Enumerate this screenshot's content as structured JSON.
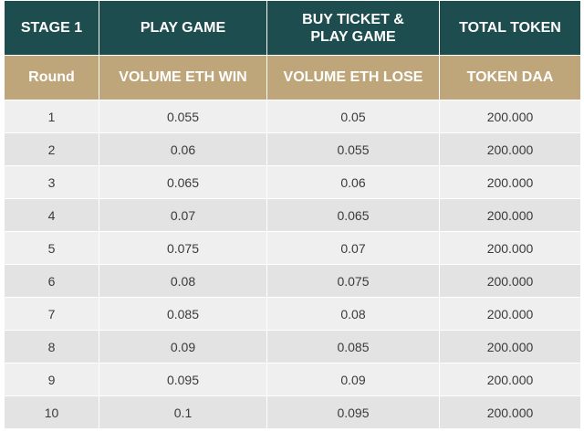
{
  "header_top": [
    "STAGE 1",
    "PLAY GAME",
    "BUY TICKET &\nPLAY GAME",
    "TOTAL TOKEN"
  ],
  "header_sub": [
    "Round",
    "VOLUME ETH WIN",
    "VOLUME ETH LOSE",
    "TOKEN DAA"
  ],
  "rows": [
    {
      "round": "1",
      "win": "0.055",
      "lose": "0.05",
      "token": "200.000"
    },
    {
      "round": "2",
      "win": "0.06",
      "lose": "0.055",
      "token": "200.000"
    },
    {
      "round": "3",
      "win": "0.065",
      "lose": "0.06",
      "token": "200.000"
    },
    {
      "round": "4",
      "win": "0.07",
      "lose": "0.065",
      "token": "200.000"
    },
    {
      "round": "5",
      "win": "0.075",
      "lose": "0.07",
      "token": "200.000"
    },
    {
      "round": "6",
      "win": "0.08",
      "lose": "0.075",
      "token": "200.000"
    },
    {
      "round": "7",
      "win": "0.085",
      "lose": "0.08",
      "token": "200.000"
    },
    {
      "round": "8",
      "win": "0.09",
      "lose": "0.085",
      "token": "200.000"
    },
    {
      "round": "9",
      "win": "0.095",
      "lose": "0.09",
      "token": "200.000"
    },
    {
      "round": "10",
      "win": "0.1",
      "lose": "0.095",
      "token": "200.000"
    }
  ],
  "colors": {
    "header_dark": "#1e4d4f",
    "header_gold": "#bfa67a",
    "row_light": "#efeff0",
    "row_dark": "#e3e3e4"
  }
}
